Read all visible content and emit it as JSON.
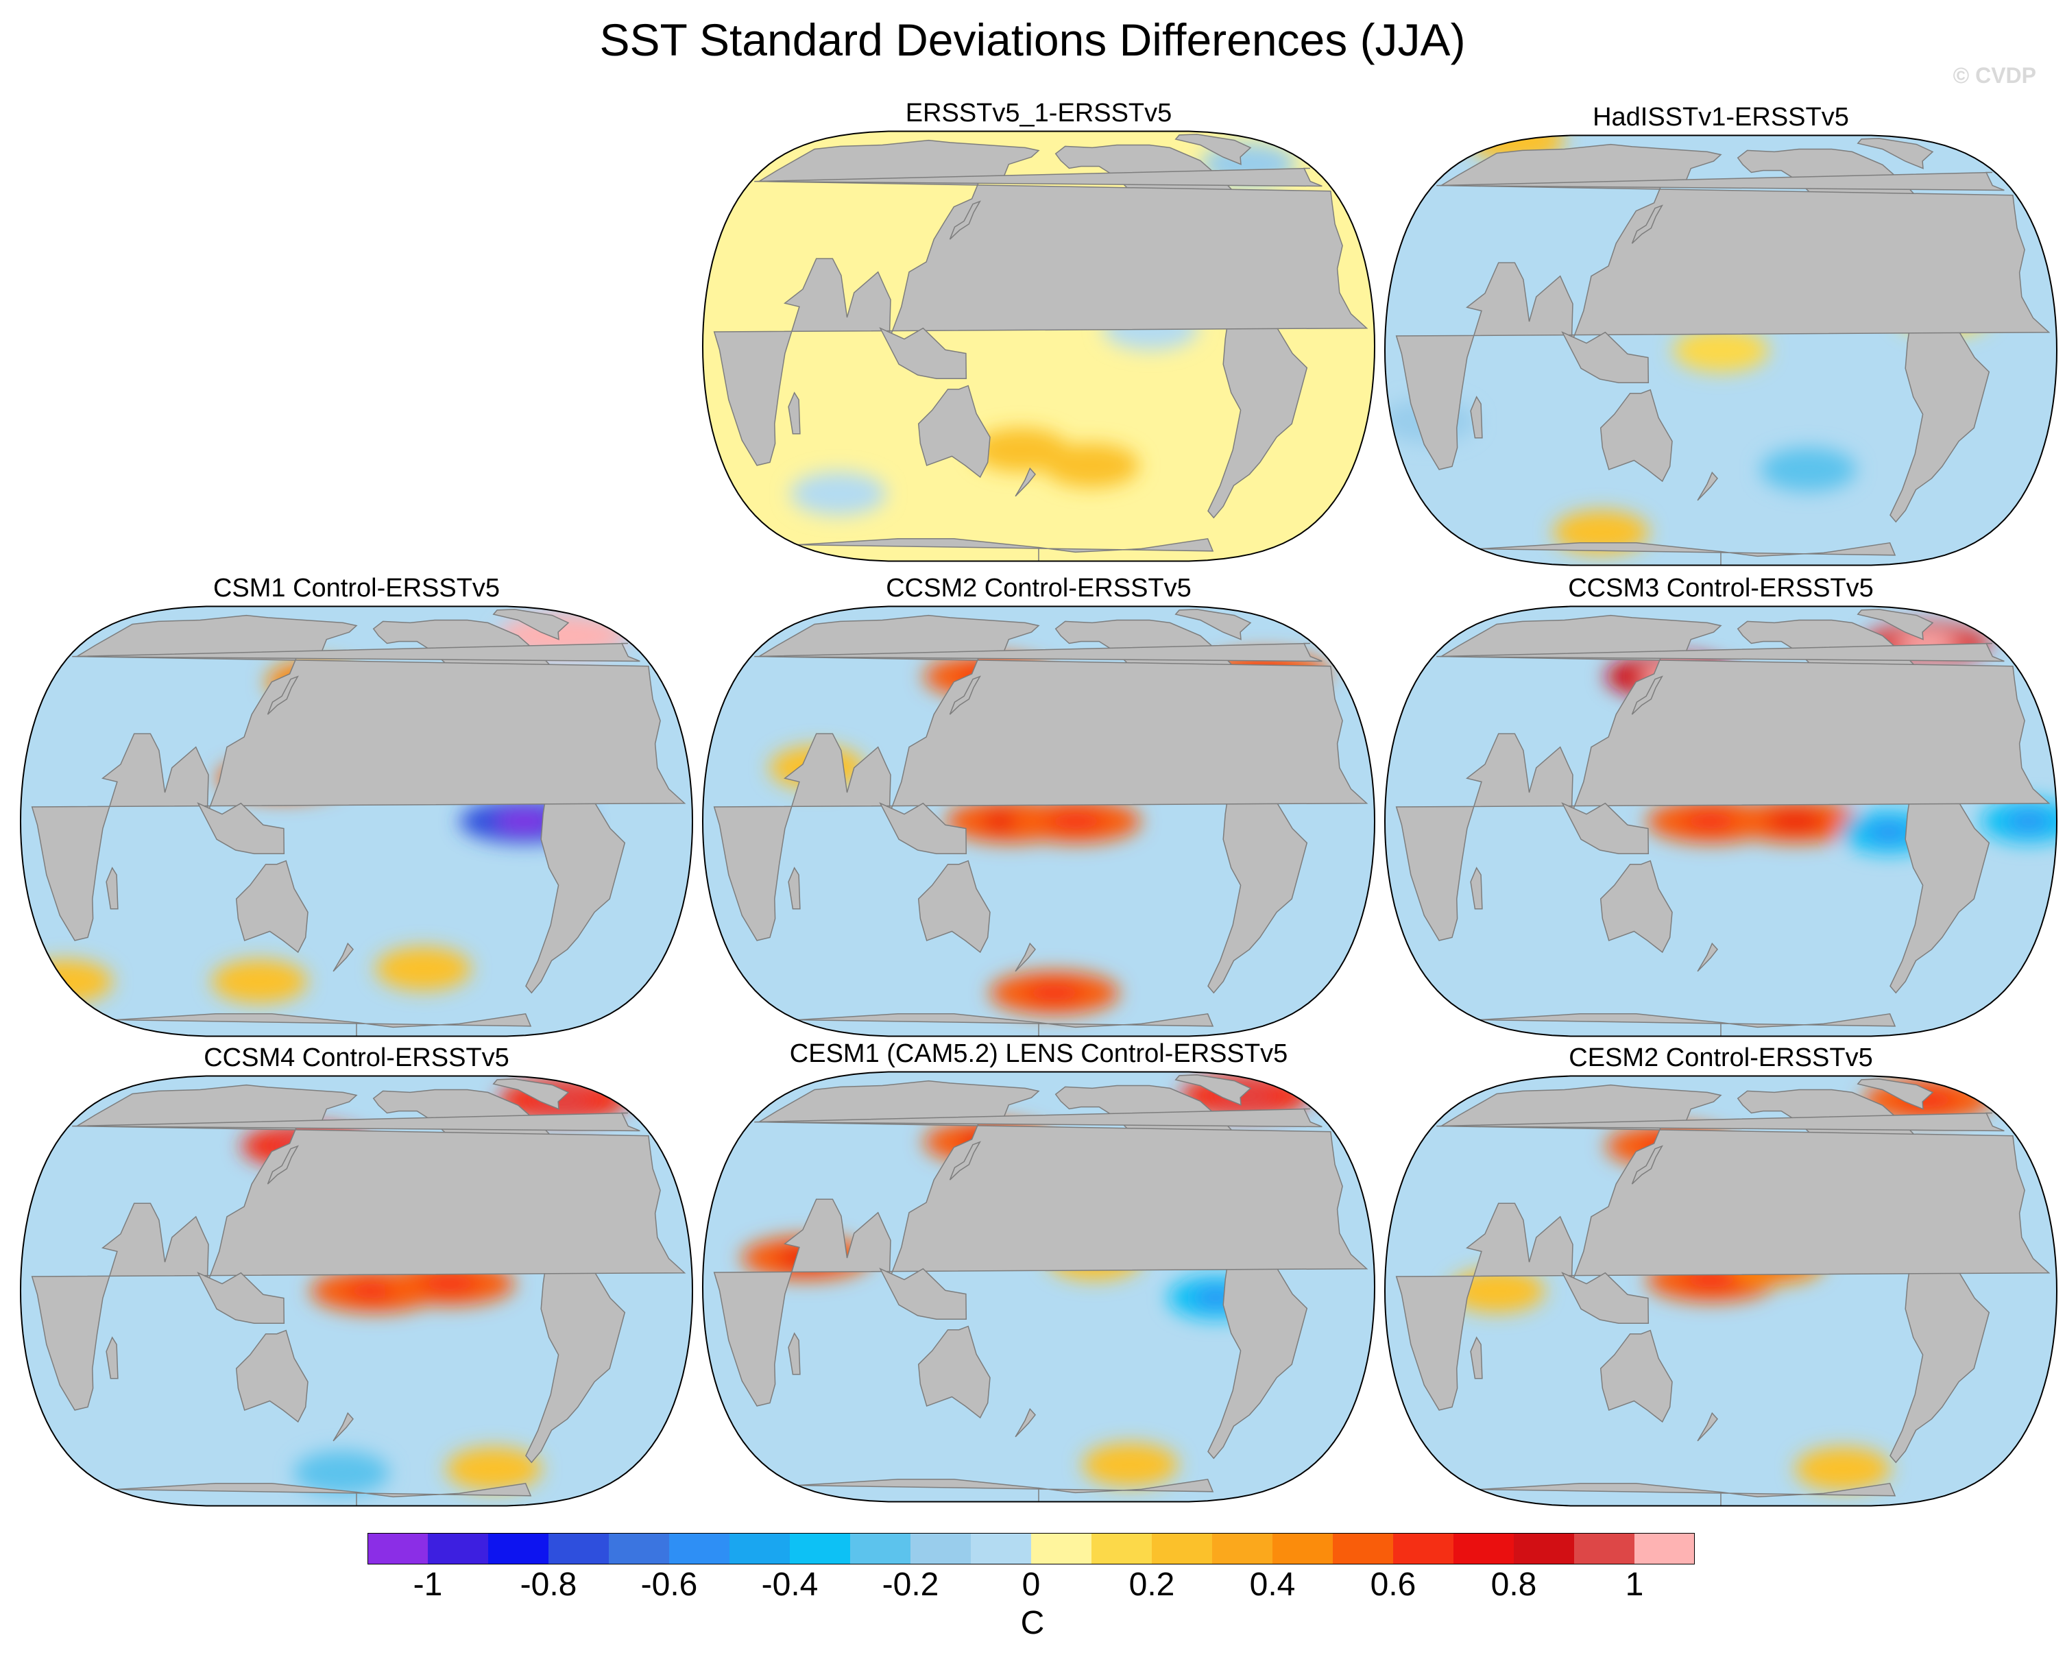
{
  "title": "SST Standard Deviations Differences (JJA)",
  "watermark": "© CVDP",
  "panels": [
    {
      "title": "ERSSTv5_1-ERSSTv5",
      "base": "#fff59d",
      "hotspots": [
        {
          "lon": 160,
          "lat": 28,
          "v": 0.2
        },
        {
          "lon": -150,
          "lat": -35,
          "v": 0.2
        },
        {
          "lon": -120,
          "lat": 5,
          "v": -0.1
        },
        {
          "lon": 60,
          "lat": -45,
          "v": -0.1
        },
        {
          "lon": -40,
          "lat": 60,
          "v": -0.2
        },
        {
          "lon": 170,
          "lat": -30,
          "v": 0.2
        }
      ]
    },
    {
      "title": "HadISSTv1-ERSSTv5",
      "base": "#b3dbf2",
      "hotspots": [
        {
          "lon": 180,
          "lat": 0,
          "v": 0.1
        },
        {
          "lon": -130,
          "lat": -35,
          "v": -0.3
        },
        {
          "lon": 0,
          "lat": 80,
          "v": 0.3
        },
        {
          "lon": 100,
          "lat": -60,
          "v": 0.2
        },
        {
          "lon": -60,
          "lat": 10,
          "v": 0.1
        },
        {
          "lon": 20,
          "lat": -20,
          "v": -0.2
        }
      ]
    },
    {
      "title": "CSM1 Control-ERSSTv5",
      "base": "#b3dbf2",
      "hotspots": [
        {
          "lon": 155,
          "lat": 42,
          "v": 0.4
        },
        {
          "lon": 140,
          "lat": 12,
          "v": 0.5
        },
        {
          "lon": -90,
          "lat": 0,
          "v": -0.8
        },
        {
          "lon": -40,
          "lat": 62,
          "v": 1.0
        },
        {
          "lon": 0,
          "lat": -50,
          "v": 0.3
        },
        {
          "lon": 120,
          "lat": -50,
          "v": 0.3
        },
        {
          "lon": -140,
          "lat": -45,
          "v": 0.3
        }
      ]
    },
    {
      "title": "CCSM2 Control-ERSSTv5",
      "base": "#b3dbf2",
      "hotspots": [
        {
          "lon": 165,
          "lat": 0,
          "v": 0.6
        },
        {
          "lon": -160,
          "lat": 0,
          "v": 0.5
        },
        {
          "lon": 150,
          "lat": 44,
          "v": 0.5
        },
        {
          "lon": -45,
          "lat": 45,
          "v": 0.5
        },
        {
          "lon": -170,
          "lat": -55,
          "v": 0.5
        },
        {
          "lon": 60,
          "lat": 15,
          "v": 0.3
        }
      ]
    },
    {
      "title": "CCSM3 Control-ERSSTv5",
      "base": "#b3dbf2",
      "hotspots": [
        {
          "lon": 150,
          "lat": 44,
          "v": 0.8
        },
        {
          "lon": -45,
          "lat": 58,
          "v": 0.9
        },
        {
          "lon": 175,
          "lat": 0,
          "v": 0.5
        },
        {
          "lon": -140,
          "lat": 0,
          "v": 0.6
        },
        {
          "lon": -90,
          "lat": -3,
          "v": -0.4
        },
        {
          "lon": -15,
          "lat": 0,
          "v": -0.4
        }
      ]
    },
    {
      "title": "CCSM4 Control-ERSSTv5",
      "base": "#b3dbf2",
      "hotspots": [
        {
          "lon": 150,
          "lat": 44,
          "v": 0.7
        },
        {
          "lon": -170,
          "lat": 0,
          "v": 0.5
        },
        {
          "lon": -130,
          "lat": 2,
          "v": 0.5
        },
        {
          "lon": -35,
          "lat": 65,
          "v": 0.7
        },
        {
          "lon": 170,
          "lat": -60,
          "v": -0.3
        },
        {
          "lon": -90,
          "lat": -58,
          "v": 0.3
        }
      ]
    },
    {
      "title": "CESM1 (CAM5.2) LENS Control-ERSSTv5",
      "base": "#b3dbf2",
      "hotspots": [
        {
          "lon": 150,
          "lat": 44,
          "v": 0.6
        },
        {
          "lon": 55,
          "lat": 8,
          "v": 0.6
        },
        {
          "lon": -35,
          "lat": 65,
          "v": 0.7
        },
        {
          "lon": -150,
          "lat": 8,
          "v": 0.3
        },
        {
          "lon": -120,
          "lat": -58,
          "v": 0.3
        },
        {
          "lon": -85,
          "lat": -3,
          "v": -0.4
        }
      ]
    },
    {
      "title": "CESM2 Control-ERSSTv5",
      "base": "#b3dbf2",
      "hotspots": [
        {
          "lon": 175,
          "lat": 3,
          "v": 0.5
        },
        {
          "lon": -150,
          "lat": 8,
          "v": 0.4
        },
        {
          "lon": 150,
          "lat": 44,
          "v": 0.5
        },
        {
          "lon": -35,
          "lat": 65,
          "v": 0.5
        },
        {
          "lon": 60,
          "lat": 0,
          "v": 0.3
        },
        {
          "lon": -100,
          "lat": -58,
          "v": 0.3
        }
      ]
    }
  ],
  "colorbar": {
    "colors": [
      "#8b2ee6",
      "#3d1fe0",
      "#0d14f0",
      "#2e4fdd",
      "#3b75e0",
      "#2e8ff5",
      "#1aa6f0",
      "#0dc1f5",
      "#5cc3ed",
      "#99cdec",
      "#b3dbf2",
      "#fff59d",
      "#fcd949",
      "#fbc12b",
      "#fba81c",
      "#fb8c0c",
      "#f95d0a",
      "#f52f14",
      "#ea0f0f",
      "#d20f14",
      "#dd4747",
      "#feb3b3"
    ],
    "ticks": [
      "-1",
      "-0.8",
      "-0.6",
      "-0.4",
      "-0.2",
      "0",
      "0.2",
      "0.4",
      "0.6",
      "0.8",
      "1"
    ],
    "unit": "C"
  }
}
